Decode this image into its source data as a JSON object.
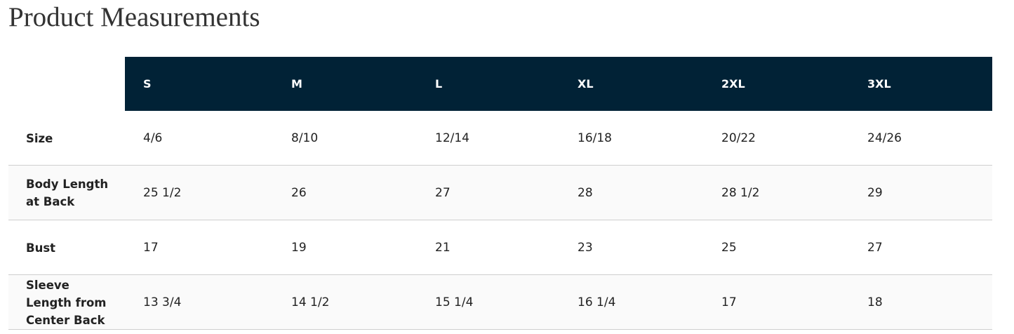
{
  "header": {
    "title": "Product Measurements"
  },
  "table": {
    "columns": [
      "S",
      "M",
      "L",
      "XL",
      "2XL",
      "3XL"
    ],
    "rows": [
      {
        "label": "Size",
        "cells": [
          "4/6",
          "8/10",
          "12/14",
          "16/18",
          "20/22",
          "24/26"
        ]
      },
      {
        "label": "Body Length at Back",
        "cells": [
          "25 1/2",
          "26",
          "27",
          "28",
          "28 1/2",
          "29"
        ]
      },
      {
        "label": "Bust",
        "cells": [
          "17",
          "19",
          "21",
          "23",
          "25",
          "27"
        ]
      },
      {
        "label": "Sleeve Length from Center Back",
        "cells": [
          "13 3/4",
          "14 1/2",
          "15 1/4",
          "16 1/4",
          "17",
          "18"
        ]
      }
    ]
  }
}
